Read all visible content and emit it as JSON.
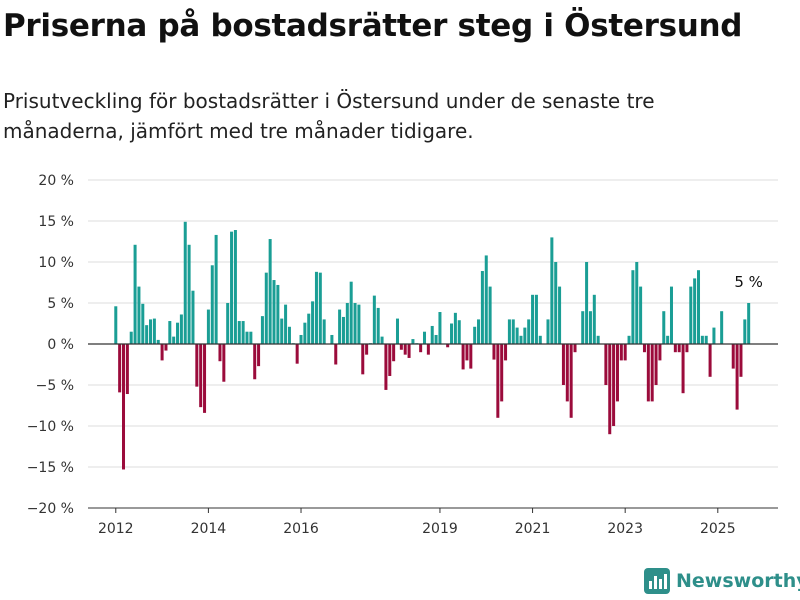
{
  "title": "Priserna på bostadsrätter steg i Östersund",
  "subtitle": "Prisutveckling för bostadsrätter i Östersund under de senaste tre månaderna, jämfört med tre månader tidigare.",
  "brand": {
    "name": "Newsworthy",
    "icon": "newsworthy-logo-icon",
    "color": "#2e8f8a"
  },
  "colors": {
    "positive": "#1a9e95",
    "negative": "#9b0b3b",
    "zero_line": "#333333",
    "grid": "#dddddd"
  },
  "chart_data": {
    "type": "bar",
    "ylim": [
      -20,
      20
    ],
    "xlim": [
      2011.4,
      2026.3
    ],
    "y_ticks": [
      20,
      15,
      10,
      5,
      0,
      -5,
      -10,
      -15,
      -20
    ],
    "y_tick_labels": [
      "20 %",
      "15 %",
      "10 %",
      "5 %",
      "0 %",
      "−5 %",
      "−10 %",
      "−15 %",
      "−20 %"
    ],
    "x_ticks": [
      2012,
      2014,
      2016,
      2019,
      2021,
      2023,
      2025
    ],
    "x_tick_labels": [
      "2012",
      "2014",
      "2016",
      "2019",
      "2021",
      "2023",
      "2025"
    ],
    "grid": true,
    "series": [
      {
        "start": 2012.0,
        "step": 0.0833333,
        "values": [
          4.6,
          -5.9,
          -15.3,
          -6.1,
          1.5,
          12.1,
          7.0,
          4.9,
          2.3,
          3.0,
          3.1,
          0.5,
          -2.0,
          -0.8,
          2.8,
          0.9,
          2.6,
          3.6,
          14.9,
          12.1,
          6.5,
          -5.2,
          -7.7,
          -8.4,
          4.2,
          9.6,
          13.3,
          -2.1,
          -4.6,
          5.0,
          13.7,
          13.9,
          2.8,
          2.8,
          1.5,
          1.5,
          -4.3,
          -2.7,
          3.4,
          8.7,
          12.8,
          7.8,
          7.2,
          3.1,
          4.8,
          2.1,
          0.1,
          -2.4,
          1.1,
          2.6,
          3.7,
          5.2,
          8.8,
          8.7,
          3.0,
          0.0,
          1.1,
          -2.5,
          4.2,
          3.3,
          5.0,
          7.6,
          5.0,
          4.8,
          -3.7,
          -1.3,
          0.1,
          5.9,
          4.4,
          0.9,
          -5.6,
          -3.9,
          -2.1,
          3.1,
          -0.7,
          -1.3,
          -1.7,
          0.6,
          0.1,
          -1.0,
          1.5,
          -1.3,
          2.2,
          1.1,
          3.9,
          0.0,
          -0.4,
          2.5,
          3.8,
          2.9,
          -3.1,
          -2.0,
          -3.0,
          2.1,
          3.0,
          8.9,
          10.8,
          7.0,
          -1.9,
          -9.0,
          -7.0,
          -2.0,
          3.0,
          3.0,
          2.0,
          1.0,
          2.0,
          3.0,
          6.0,
          6.0,
          1.0,
          0.0,
          3.0,
          13.0,
          10.0,
          7.0,
          -5.0,
          -7.0,
          -9.0,
          -1.0,
          0.0,
          4.0,
          10.0,
          4.0,
          6.0,
          1.0,
          0.0,
          -5.0,
          -11.0,
          -10.0,
          -7.0,
          -2.0,
          -2.0,
          1.0,
          9.0,
          10.0,
          7.0,
          -1.0,
          -7.0,
          -7.0,
          -5.0,
          -2.0,
          4.0,
          1.0,
          7.0,
          -1.0,
          -1.0,
          -6.0,
          -1.0,
          7.0,
          8.0,
          9.0,
          1.0,
          1.0,
          -4.0,
          2.0,
          0.0,
          4.0,
          0.0,
          0.0,
          -3.0,
          -8.0,
          -4.0,
          3.0,
          5.0
        ]
      }
    ],
    "annotation": {
      "label": "5 %",
      "value": 5
    }
  }
}
